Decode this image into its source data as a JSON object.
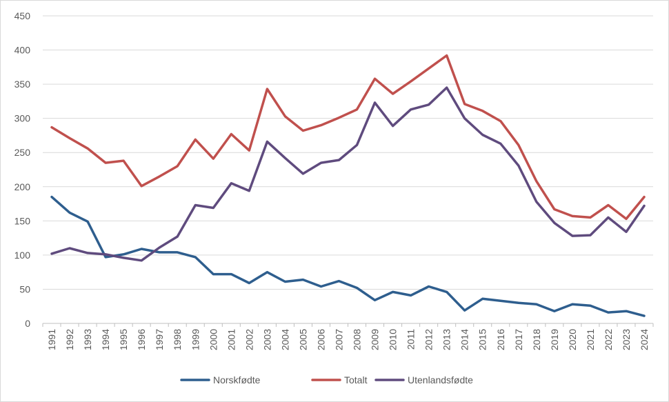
{
  "chart_data": {
    "type": "line",
    "title": "",
    "xlabel": "",
    "ylabel": "",
    "ylim": [
      0,
      450
    ],
    "yticks": [
      0,
      50,
      100,
      150,
      200,
      250,
      300,
      350,
      400,
      450
    ],
    "grid": true,
    "legend_position": "bottom",
    "categories": [
      "1991",
      "1992",
      "1993",
      "1994",
      "1995",
      "1996",
      "1997",
      "1998",
      "1999",
      "2000",
      "2001",
      "2002",
      "2003",
      "2004",
      "2005",
      "2006",
      "2007",
      "2008",
      "2009",
      "2010",
      "2011",
      "2012",
      "2013",
      "2014",
      "2015",
      "2016",
      "2017",
      "2018",
      "2019",
      "2020",
      "2021",
      "2022",
      "2023",
      "2024"
    ],
    "series": [
      {
        "name": "Norskfødte",
        "color": "#2E5E8E",
        "values": [
          185,
          162,
          149,
          97,
          101,
          109,
          104,
          104,
          97,
          72,
          72,
          59,
          75,
          61,
          64,
          54,
          62,
          52,
          34,
          46,
          41,
          54,
          46,
          19,
          36,
          33,
          30,
          28,
          18,
          28,
          26,
          16,
          18,
          11
        ]
      },
      {
        "name": "Totalt",
        "color": "#C0504D",
        "values": [
          287,
          271,
          256,
          235,
          238,
          201,
          215,
          230,
          269,
          241,
          277,
          253,
          343,
          303,
          282,
          290,
          301,
          313,
          358,
          336,
          354,
          373,
          392,
          321,
          311,
          296,
          261,
          208,
          167,
          157,
          155,
          173,
          153,
          185
        ]
      },
      {
        "name": "Utenlandsfødte",
        "color": "#5F4B7E",
        "values": [
          102,
          110,
          103,
          101,
          96,
          92,
          111,
          127,
          173,
          169,
          205,
          194,
          266,
          242,
          219,
          235,
          239,
          261,
          323,
          289,
          313,
          320,
          345,
          300,
          276,
          263,
          231,
          178,
          147,
          128,
          129,
          155,
          134,
          172
        ]
      }
    ]
  }
}
